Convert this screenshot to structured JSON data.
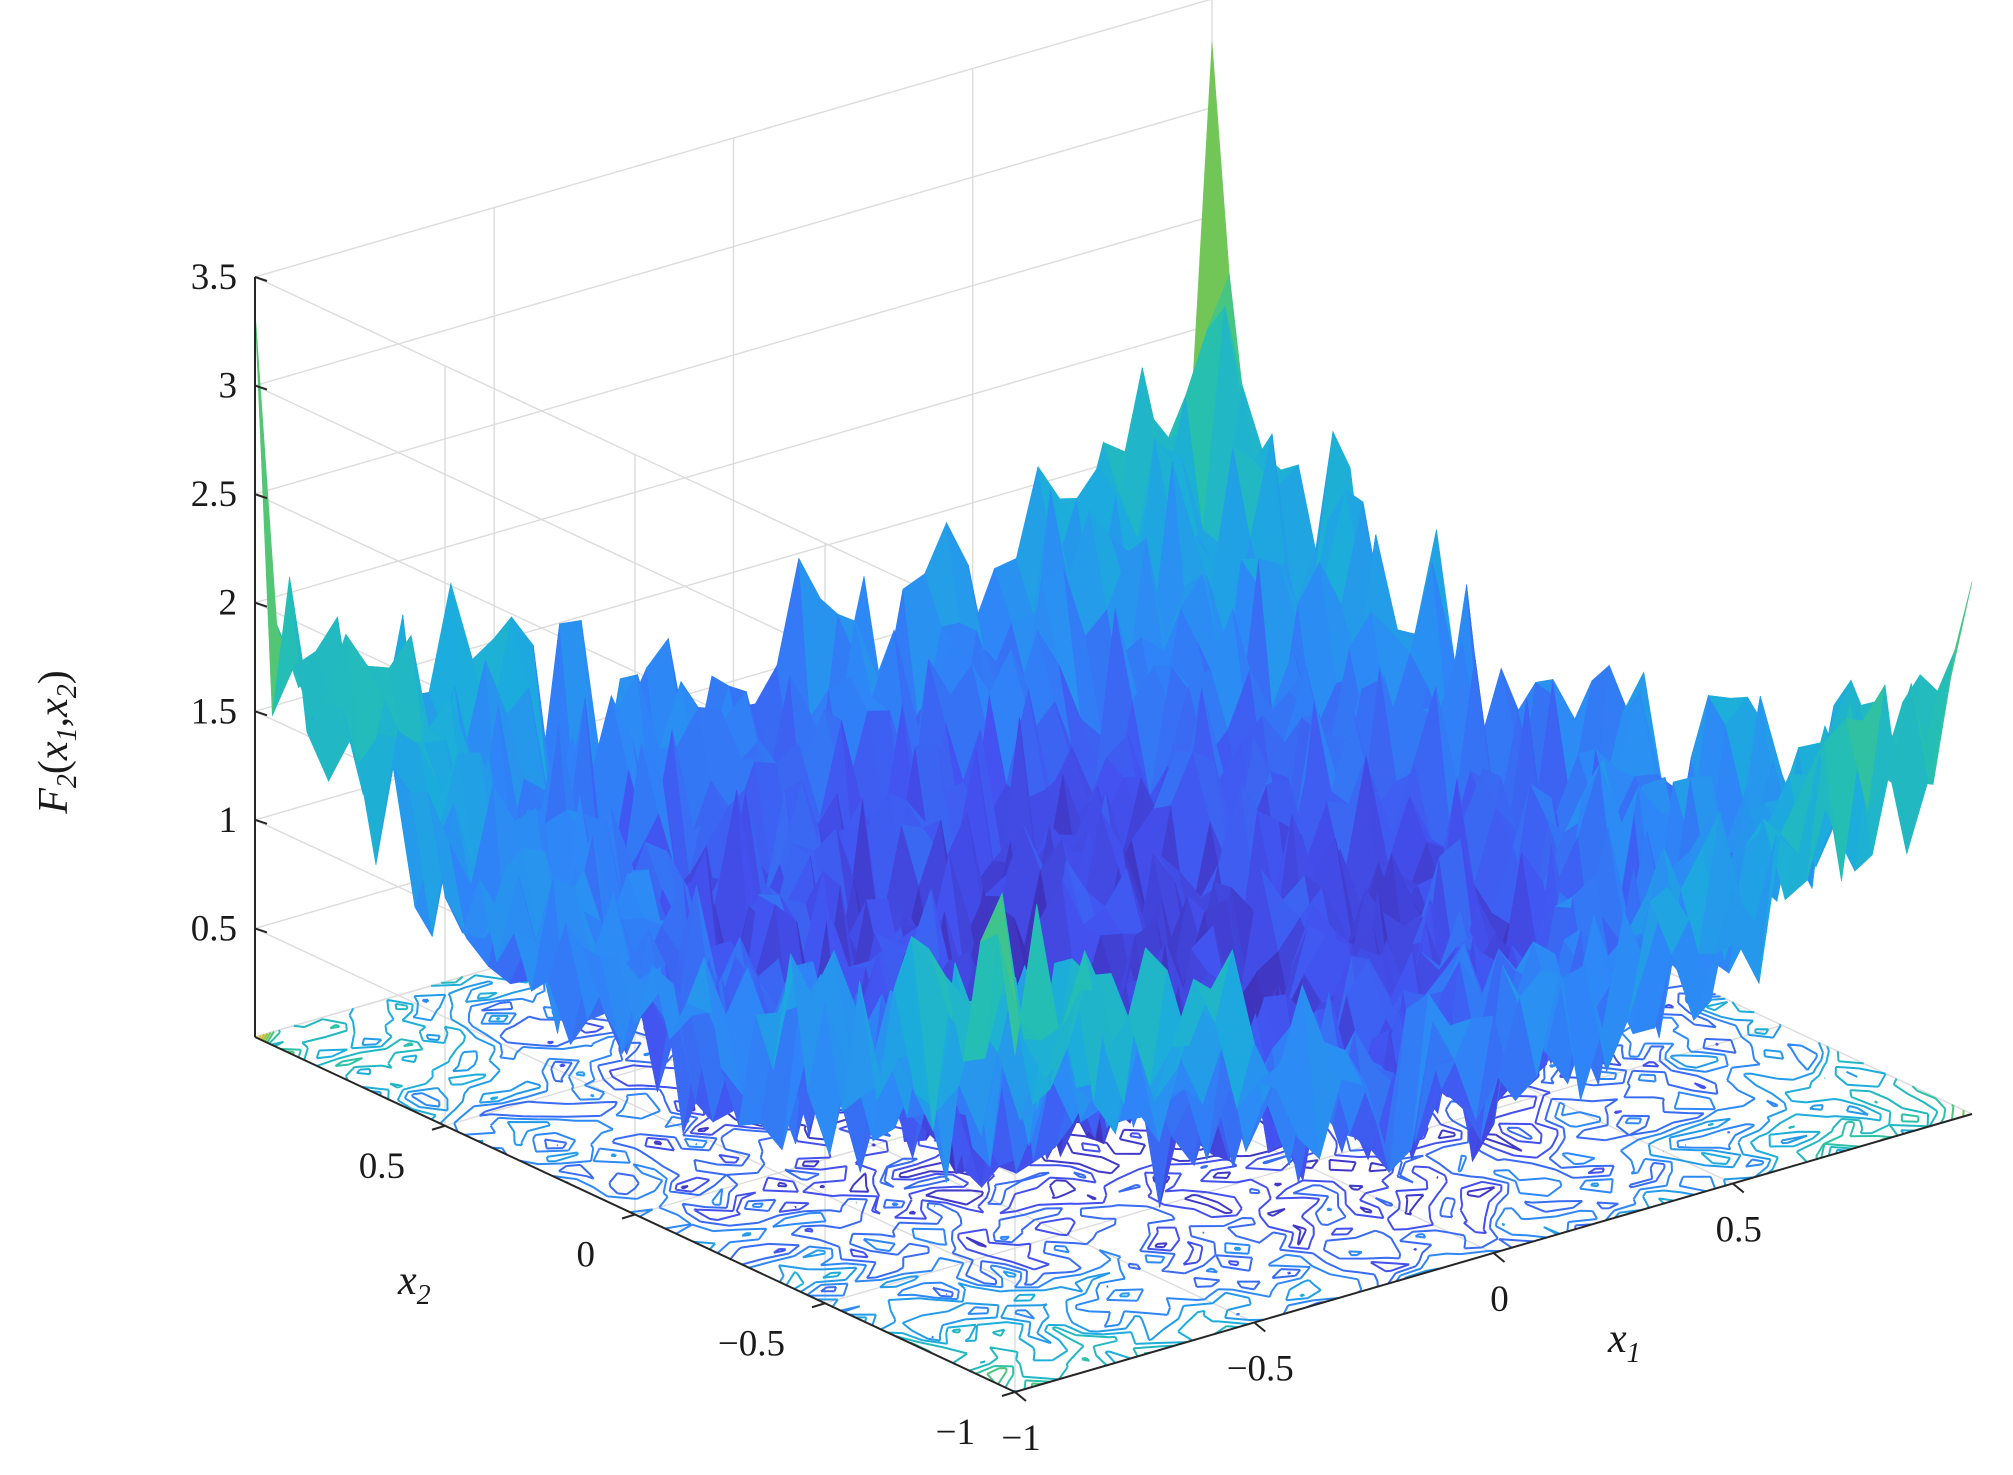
{
  "chart_data": {
    "type": "surface",
    "function_label": {
      "base": "F",
      "sub": "2",
      "open": "(",
      "var1": "x",
      "sub1": "1",
      "comma": ",",
      "var2": "x",
      "sub2": "2",
      "close": ")"
    },
    "xlabel": {
      "base": "x",
      "sub": "1"
    },
    "ylabel": {
      "base": "x",
      "sub": "2"
    },
    "xlim": [
      -1,
      1
    ],
    "ylim": [
      -1,
      1
    ],
    "zlim": [
      0,
      3.5
    ],
    "x_ticks": [
      -1,
      -0.5,
      0,
      0.5
    ],
    "x_tick_labels": [
      "−1",
      "−0.5",
      "0",
      "0.5"
    ],
    "y_ticks": [
      -1,
      -0.5,
      0,
      0.5
    ],
    "y_tick_labels": [
      "−1",
      "−0.5",
      "0",
      "0.5"
    ],
    "z_ticks": [
      0.5,
      1,
      1.5,
      2,
      2.5,
      3,
      3.5
    ],
    "z_tick_labels": [
      "0.5",
      "1",
      "1.5",
      "2",
      "2.5",
      "3",
      "3.5"
    ],
    "grid": true,
    "contour_projection": true,
    "colormap": "parula",
    "colors": [
      "#3e26a8",
      "#4352f0",
      "#2e87f7",
      "#1cacdd",
      "#25c0b1",
      "#5ec863",
      "#b7bd31",
      "#fdbb2d",
      "#f9fb15"
    ]
  }
}
